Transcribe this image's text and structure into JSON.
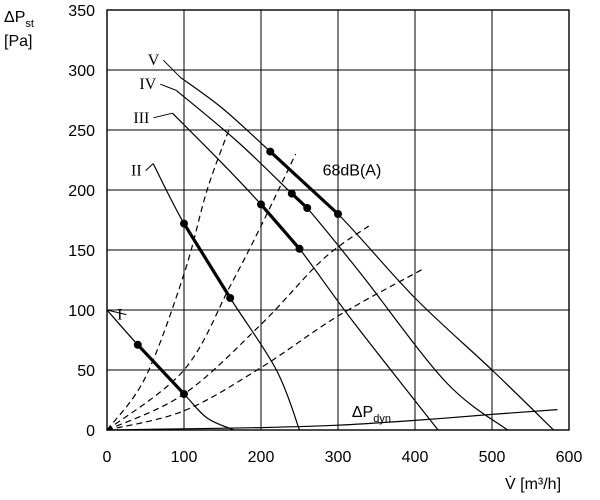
{
  "chart_data": {
    "type": "line",
    "xlabel_main": "V̇ [m³/h]",
    "ylabel_line1": "ΔP",
    "ylabel_sub": "st",
    "ylabel_line2": "[Pa]",
    "xlim": [
      0,
      600
    ],
    "ylim": [
      0,
      350
    ],
    "x_ticks": [
      0,
      100,
      200,
      300,
      400,
      500,
      600
    ],
    "y_ticks": [
      0,
      50,
      100,
      150,
      200,
      250,
      300,
      350
    ],
    "grid": true,
    "fan_curves": [
      {
        "name": "I",
        "points": [
          [
            0,
            100
          ],
          [
            40,
            71
          ],
          [
            100,
            30
          ],
          [
            130,
            10
          ],
          [
            165,
            0
          ]
        ]
      },
      {
        "name": "II",
        "points": [
          [
            60,
            222
          ],
          [
            100,
            172
          ],
          [
            160,
            110
          ],
          [
            220,
            50
          ],
          [
            250,
            0
          ]
        ]
      },
      {
        "name": "III",
        "points": [
          [
            85,
            264
          ],
          [
            150,
            222
          ],
          [
            200,
            188
          ],
          [
            250,
            151
          ],
          [
            320,
            90
          ],
          [
            430,
            0
          ]
        ]
      },
      {
        "name": "IV",
        "points": [
          [
            90,
            283
          ],
          [
            170,
            240
          ],
          [
            240,
            197
          ],
          [
            260,
            185
          ],
          [
            330,
            130
          ],
          [
            440,
            40
          ],
          [
            520,
            0
          ]
        ]
      },
      {
        "name": "V",
        "points": [
          [
            95,
            294
          ],
          [
            150,
            268
          ],
          [
            212,
            232
          ],
          [
            300,
            180
          ],
          [
            400,
            110
          ],
          [
            500,
            50
          ],
          [
            580,
            0
          ]
        ]
      }
    ],
    "operating_segments": [
      {
        "name": "I",
        "points": [
          [
            40,
            71
          ],
          [
            100,
            30
          ]
        ]
      },
      {
        "name": "II",
        "points": [
          [
            100,
            172
          ],
          [
            160,
            110
          ]
        ]
      },
      {
        "name": "III",
        "points": [
          [
            200,
            188
          ],
          [
            250,
            151
          ]
        ]
      },
      {
        "name": "IV",
        "points": [
          [
            240,
            197
          ],
          [
            260,
            185
          ]
        ]
      },
      {
        "name": "V",
        "points": [
          [
            212,
            232
          ],
          [
            300,
            180
          ]
        ]
      }
    ],
    "system_curves": [
      {
        "points": [
          [
            0,
            0
          ],
          [
            50,
            44
          ],
          [
            100,
            130
          ],
          [
            130,
            200
          ],
          [
            160,
            253
          ]
        ]
      },
      {
        "points": [
          [
            0,
            0
          ],
          [
            100,
            50
          ],
          [
            160,
            120
          ],
          [
            200,
            170
          ],
          [
            245,
            230
          ]
        ]
      },
      {
        "points": [
          [
            0,
            0
          ],
          [
            100,
            30
          ],
          [
            200,
            88
          ],
          [
            280,
            142
          ],
          [
            340,
            170
          ]
        ]
      },
      {
        "points": [
          [
            0,
            0
          ],
          [
            100,
            16
          ],
          [
            200,
            52
          ],
          [
            300,
            95
          ],
          [
            410,
            134
          ]
        ]
      }
    ],
    "dynamic_pressure_curve": {
      "name": "ΔP",
      "sub": "dyn",
      "points": [
        [
          0,
          0
        ],
        [
          100,
          1
        ],
        [
          200,
          2
        ],
        [
          300,
          4
        ],
        [
          400,
          8
        ],
        [
          500,
          13
        ],
        [
          585,
          17
        ]
      ]
    },
    "annotations": {
      "noise": "68dB(A)",
      "labels": [
        {
          "text": "I",
          "at": [
            20,
            92
          ]
        },
        {
          "text": "II",
          "at": [
            45,
            212
          ]
        },
        {
          "text": "III",
          "at": [
            55,
            256
          ]
        },
        {
          "text": "IV",
          "at": [
            64,
            284
          ]
        },
        {
          "text": "V",
          "at": [
            68,
            304
          ]
        }
      ]
    }
  }
}
